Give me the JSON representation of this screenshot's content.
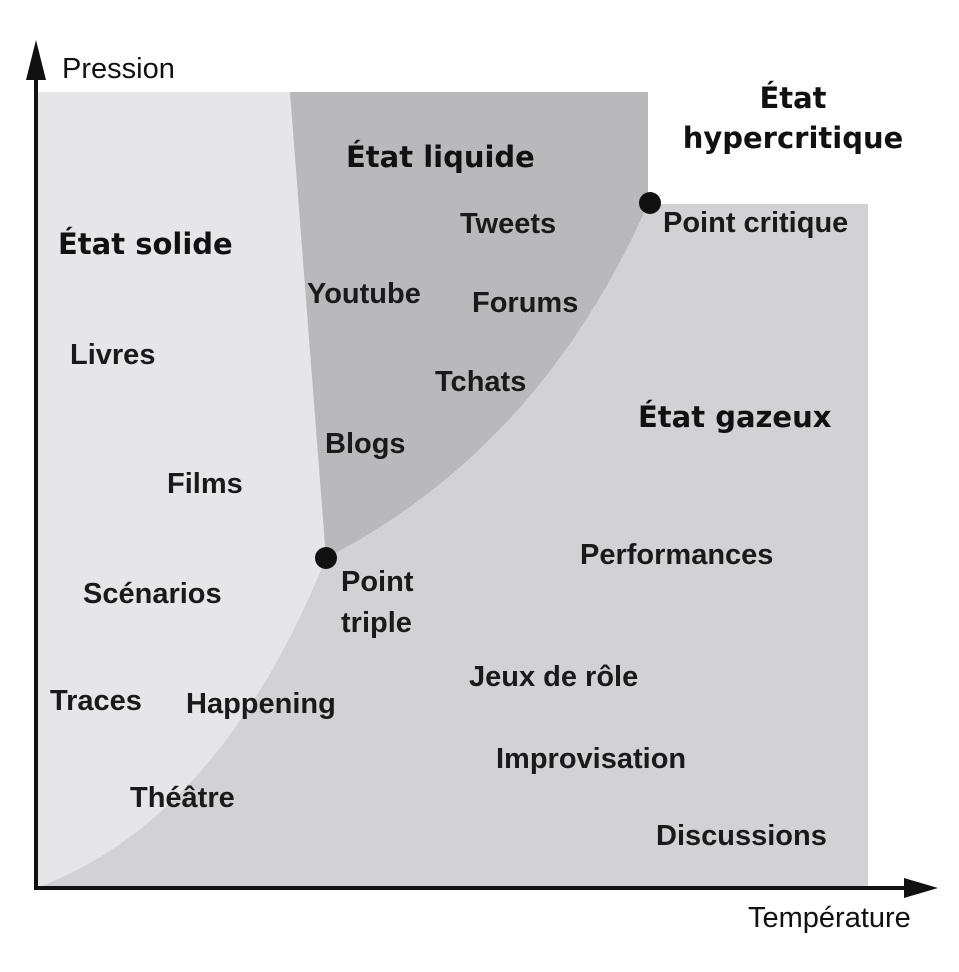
{
  "axes": {
    "y_label": "Pression",
    "x_label": "Température"
  },
  "states": {
    "solid": "État solide",
    "liquid": "État liquide",
    "gas": "État gazeux",
    "hypercritical_line1": "État",
    "hypercritical_line2": "hypercritique"
  },
  "points": {
    "triple_line1": "Point",
    "triple_line2": "triple",
    "critical": "Point critique"
  },
  "solid_items": {
    "livres": "Livres",
    "films": "Films",
    "scenarios": "Scénarios",
    "traces": "Traces",
    "happening": "Happening",
    "theatre": "Théâtre"
  },
  "liquid_items": {
    "tweets": "Tweets",
    "youtube": "Youtube",
    "forums": "Forums",
    "tchats": "Tchats",
    "blogs": "Blogs"
  },
  "gas_items": {
    "performances": "Performances",
    "jeux": "Jeux de rôle",
    "improvisation": "Improvisation",
    "discussions": "Discussions"
  },
  "colors": {
    "solid_region": "#e6e6e8",
    "gas_region": "#d2d2d4",
    "liquid_region": "#b9b9bb",
    "axis": "#111111",
    "points": "#111111"
  }
}
